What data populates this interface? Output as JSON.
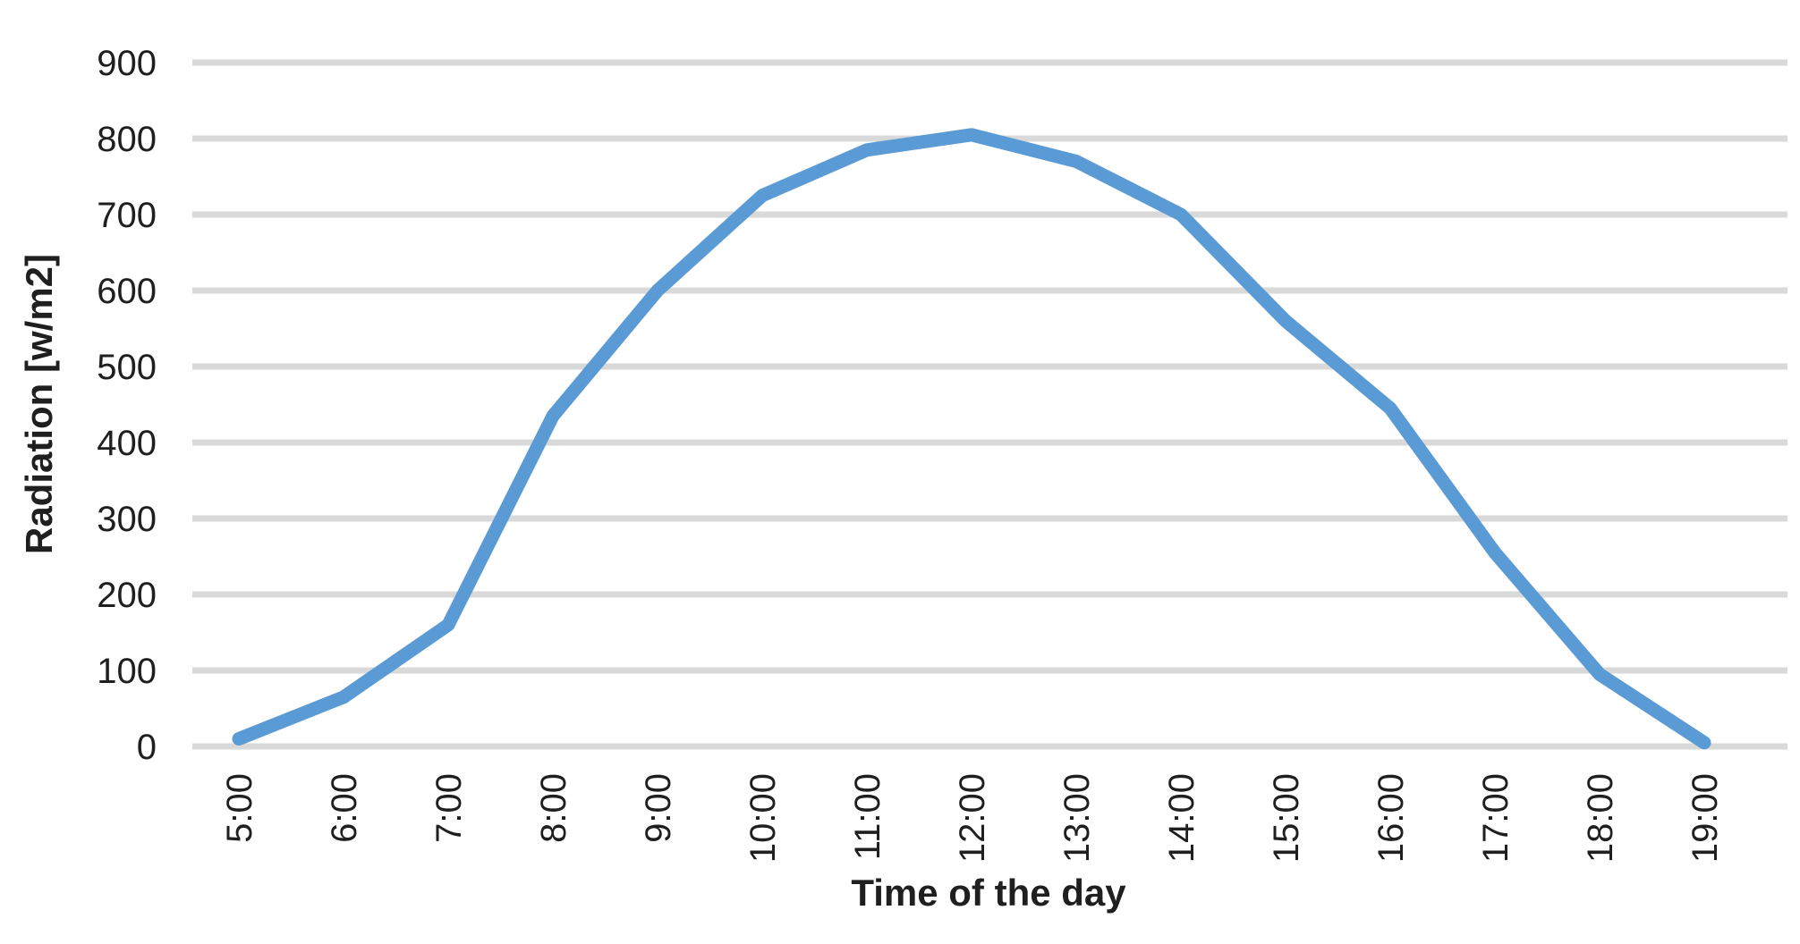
{
  "chart_data": {
    "type": "line",
    "title": "",
    "xlabel": "Time of the day",
    "ylabel": "Radiation [w/m2]",
    "categories": [
      "5:00",
      "6:00",
      "7:00",
      "8:00",
      "9:00",
      "10:00",
      "11:00",
      "12:00",
      "13:00",
      "14:00",
      "15:00",
      "16:00",
      "17:00",
      "18:00",
      "19:00"
    ],
    "series": [
      {
        "name": "Radiation",
        "values": [
          10,
          65,
          160,
          435,
          600,
          725,
          785,
          805,
          770,
          700,
          560,
          445,
          255,
          95,
          5
        ]
      }
    ],
    "ylim": [
      0,
      900
    ],
    "yticks": [
      0,
      100,
      200,
      300,
      400,
      500,
      600,
      700,
      800,
      900
    ],
    "grid": "horizontal",
    "legend_position": "none",
    "x_tick_rotation_degrees": 90,
    "colors": {
      "line": "#5B9BD5",
      "gridline": "#D9D9D9",
      "text": "#1f1f1f",
      "background": "#FFFFFF"
    }
  }
}
